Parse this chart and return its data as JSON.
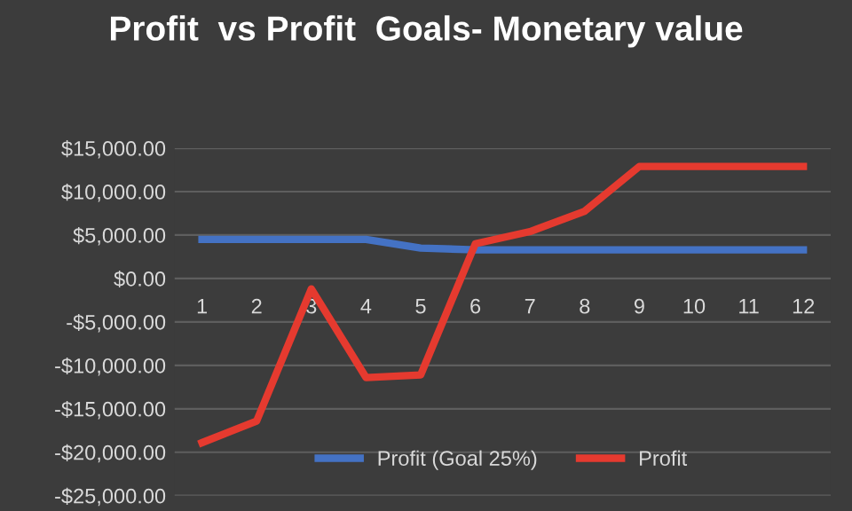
{
  "chart_data": {
    "type": "line",
    "title": "Profit  vs Profit  Goals- Monetary value",
    "categories": [
      "1",
      "2",
      "3",
      "4",
      "5",
      "6",
      "7",
      "8",
      "9",
      "10",
      "11",
      "12"
    ],
    "series": [
      {
        "name": "Profit (Goal 25%)",
        "color": "#4472c4",
        "values": [
          4500,
          4500,
          4500,
          4500,
          3500,
          3300,
          3300,
          3300,
          3300,
          3300,
          3300,
          3300
        ]
      },
      {
        "name": "Profit",
        "color": "#e53a2f",
        "values": [
          -18900,
          -16400,
          -1200,
          -11400,
          -11100,
          4000,
          5400,
          7750,
          12900,
          12900,
          12900,
          12900
        ]
      }
    ],
    "ylim": [
      -25000,
      15000
    ],
    "yticks": [
      {
        "value": -25000,
        "label": "-$25,000.00"
      },
      {
        "value": -20000,
        "label": "-$20,000.00"
      },
      {
        "value": -15000,
        "label": "-$15,000.00"
      },
      {
        "value": -10000,
        "label": "-$10,000.00"
      },
      {
        "value": -5000,
        "label": "-$5,000.00"
      },
      {
        "value": 0,
        "label": "$0.00"
      },
      {
        "value": 5000,
        "label": "$5,000.00"
      },
      {
        "value": 10000,
        "label": "$10,000.00"
      },
      {
        "value": 15000,
        "label": "$15,000.00"
      }
    ],
    "grid": "y",
    "legend": "bottom",
    "marker": "none",
    "line_style": "solid"
  }
}
